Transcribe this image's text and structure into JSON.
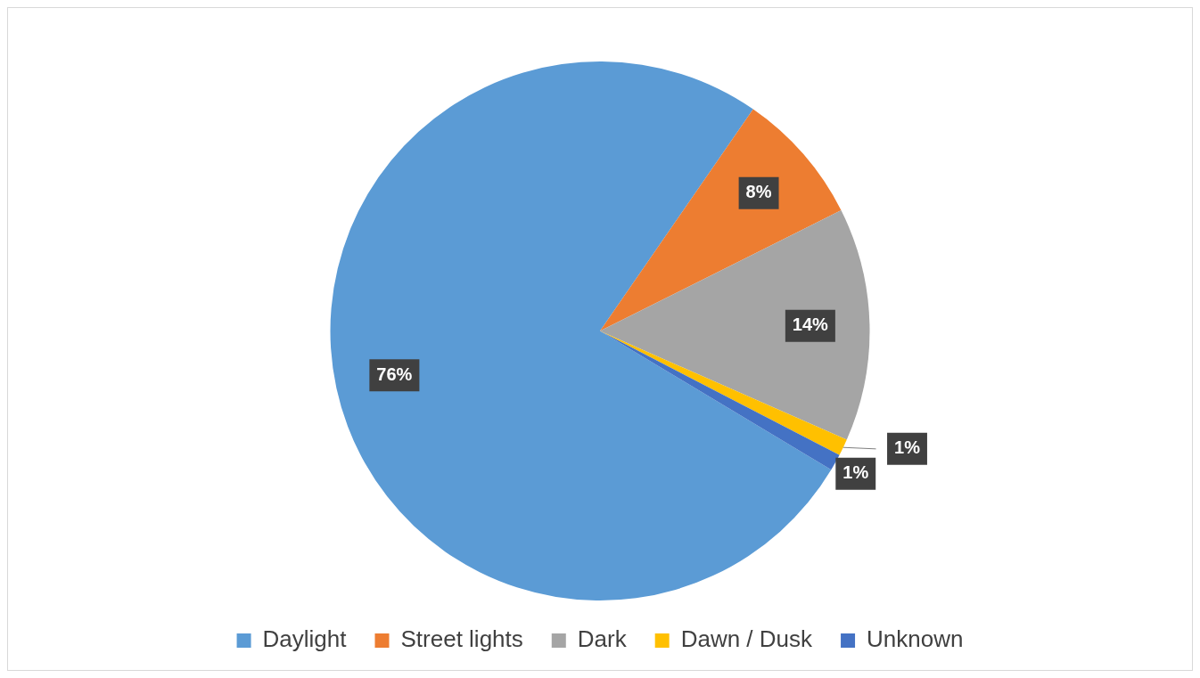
{
  "chart_data": {
    "type": "pie",
    "categories": [
      "Daylight",
      "Street lights",
      "Dark",
      "Dawn / Dusk",
      "Unknown"
    ],
    "values": [
      76,
      8,
      14,
      1,
      1
    ],
    "colors": [
      "#5b9bd5",
      "#ed7d31",
      "#a5a5a5",
      "#ffc000",
      "#4472c4"
    ],
    "value_labels": [
      "76%",
      "8%",
      "14%",
      "1%",
      "1%"
    ],
    "legend": "bottom"
  }
}
